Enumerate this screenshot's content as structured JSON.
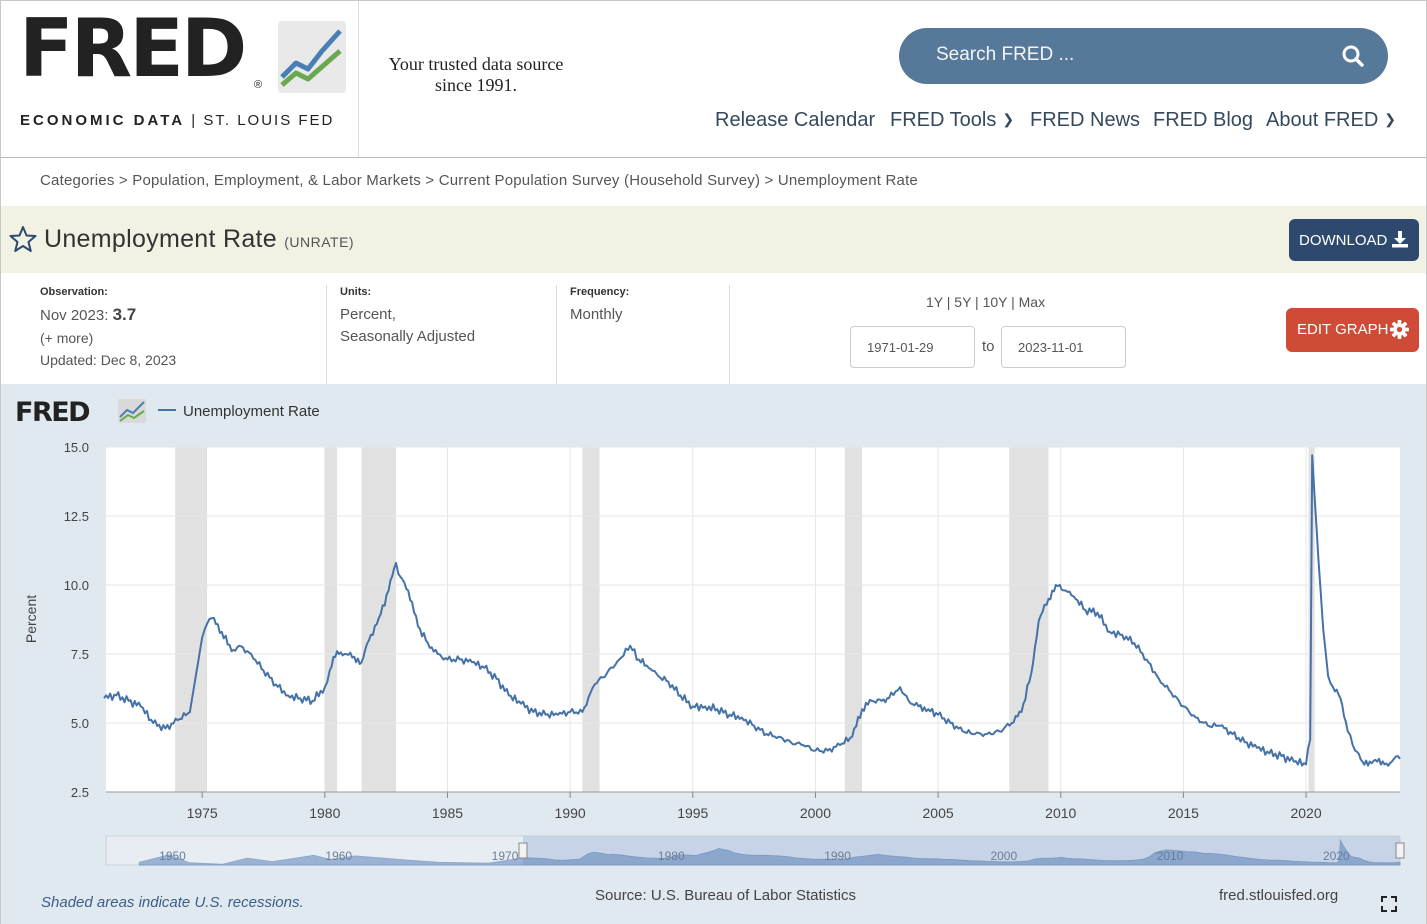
{
  "header": {
    "logo_text": "FRED",
    "logo_reg": "®",
    "logo_sub_bold": "ECONOMIC DATA",
    "logo_sub_sep": "|",
    "logo_sub_rest": "ST. LOUIS FED",
    "tagline_line1": "Your trusted data source",
    "tagline_line2": "since 1991.",
    "search_placeholder": "Search FRED ...",
    "nav": [
      "Release Calendar",
      "FRED Tools",
      "FRED News",
      "FRED Blog",
      "About FRED"
    ]
  },
  "breadcrumb": "Categories > Population, Employment, & Labor Markets > Current Population Survey (Household Survey) > Unemployment Rate",
  "series": {
    "title": "Unemployment Rate",
    "id": "(UNRATE)",
    "download_label": "DOWNLOAD",
    "edit_label": "EDIT GRAPH"
  },
  "meta": {
    "observation_label": "Observation:",
    "observation_date": "Nov 2023:",
    "observation_value": "3.7",
    "more": "(+ more)",
    "updated": "Updated: Dec 8, 2023",
    "units_label": "Units:",
    "units_line1": "Percent,",
    "units_line2": "Seasonally Adjusted",
    "frequency_label": "Frequency:",
    "frequency": "Monthly",
    "range_links": "1Y | 5Y | 10Y | Max",
    "date_from": "1971-01-29",
    "date_to_word": "to",
    "date_to": "2023-11-01"
  },
  "footer": {
    "shaded_note": "Shaded areas indicate U.S. recessions.",
    "source": "Source: U.S. Bureau of Labor Statistics",
    "url": "fred.stlouisfed.org"
  },
  "colors": {
    "line": "#4572a7",
    "recession": "#e1e1e1",
    "nav": "#34495e",
    "download": "#2d4a6e",
    "edit": "#cf4b36"
  },
  "chart_data": {
    "type": "line",
    "title": "",
    "legend": "Unemployment Rate",
    "ylabel": "Percent",
    "xlabel": "",
    "ylim": [
      2.5,
      15.0
    ],
    "xlim": [
      1971.08,
      2023.83
    ],
    "yticks": [
      "2.5",
      "5.0",
      "7.5",
      "10.0",
      "12.5",
      "15.0"
    ],
    "xticks": [
      "1975",
      "1980",
      "1985",
      "1990",
      "1995",
      "2000",
      "2005",
      "2010",
      "2015",
      "2020"
    ],
    "recessions": [
      [
        1973.9,
        1975.2
      ],
      [
        1980.0,
        1980.5
      ],
      [
        1981.5,
        1982.9
      ],
      [
        1990.5,
        1991.2
      ],
      [
        2001.2,
        2001.9
      ],
      [
        2007.9,
        2009.5
      ],
      [
        2020.1,
        2020.35
      ]
    ],
    "series": [
      {
        "name": "Unemployment Rate",
        "x": [
          1971.0,
          1971.5,
          1972.0,
          1972.5,
          1973.0,
          1973.5,
          1974.0,
          1974.5,
          1975.0,
          1975.2,
          1975.4,
          1975.8,
          1976.2,
          1976.5,
          1977.0,
          1977.5,
          1978.0,
          1978.5,
          1979.0,
          1979.5,
          1980.0,
          1980.2,
          1980.5,
          1980.8,
          1981.2,
          1981.5,
          1981.8,
          1982.2,
          1982.6,
          1982.9,
          1983.0,
          1983.4,
          1983.8,
          1984.2,
          1984.6,
          1985.0,
          1985.5,
          1986.0,
          1986.5,
          1987.0,
          1987.5,
          1988.0,
          1988.5,
          1989.0,
          1989.5,
          1990.0,
          1990.5,
          1991.0,
          1991.5,
          1992.0,
          1992.45,
          1992.8,
          1993.2,
          1993.6,
          1994.0,
          1994.5,
          1995.0,
          1995.5,
          1996.0,
          1996.5,
          1997.0,
          1997.5,
          1998.0,
          1998.5,
          1999.0,
          1999.5,
          2000.0,
          2000.5,
          2001.0,
          2001.5,
          2001.9,
          2002.3,
          2002.7,
          2003.0,
          2003.45,
          2003.8,
          2004.2,
          2004.6,
          2005.0,
          2005.5,
          2006.0,
          2006.5,
          2007.0,
          2007.5,
          2008.0,
          2008.4,
          2008.8,
          2009.1,
          2009.5,
          2009.8,
          2010.2,
          2010.6,
          2011.0,
          2011.5,
          2012.0,
          2012.5,
          2013.0,
          2013.5,
          2014.0,
          2014.5,
          2015.0,
          2015.5,
          2016.0,
          2016.5,
          2017.0,
          2017.5,
          2018.0,
          2018.5,
          2019.0,
          2019.5,
          2020.0,
          2020.17,
          2020.25,
          2020.35,
          2020.5,
          2020.7,
          2020.9,
          2021.1,
          2021.4,
          2021.7,
          2021.9,
          2022.0,
          2022.3,
          2022.6,
          2022.9,
          2023.2,
          2023.5,
          2023.75,
          2023.83
        ],
        "values": [
          5.9,
          6.0,
          5.8,
          5.6,
          5.0,
          4.8,
          5.1,
          5.4,
          8.1,
          8.6,
          8.8,
          8.3,
          7.6,
          7.8,
          7.5,
          6.9,
          6.4,
          6.0,
          5.9,
          5.8,
          6.3,
          6.9,
          7.6,
          7.5,
          7.4,
          7.2,
          8.0,
          8.8,
          9.8,
          10.8,
          10.4,
          9.8,
          8.5,
          7.9,
          7.5,
          7.3,
          7.3,
          7.2,
          7.0,
          6.6,
          6.0,
          5.7,
          5.4,
          5.3,
          5.3,
          5.4,
          5.4,
          6.4,
          6.8,
          7.3,
          7.8,
          7.3,
          7.0,
          6.7,
          6.5,
          6.0,
          5.6,
          5.6,
          5.5,
          5.3,
          5.2,
          4.9,
          4.6,
          4.5,
          4.3,
          4.2,
          4.0,
          4.0,
          4.2,
          4.5,
          5.5,
          5.8,
          5.8,
          5.9,
          6.3,
          5.8,
          5.6,
          5.5,
          5.3,
          5.0,
          4.7,
          4.6,
          4.6,
          4.7,
          5.0,
          5.4,
          6.8,
          8.7,
          9.5,
          10.0,
          9.8,
          9.5,
          9.1,
          9.0,
          8.3,
          8.2,
          7.9,
          7.3,
          6.6,
          6.1,
          5.6,
          5.2,
          4.9,
          4.9,
          4.6,
          4.3,
          4.1,
          3.9,
          3.8,
          3.6,
          3.5,
          4.4,
          14.7,
          13.2,
          11.0,
          8.4,
          6.7,
          6.3,
          5.9,
          4.7,
          4.2,
          4.0,
          3.6,
          3.6,
          3.6,
          3.5,
          3.6,
          3.8,
          3.7
        ]
      }
    ],
    "navigator": {
      "xticks": [
        "1950",
        "1960",
        "1970",
        "1980",
        "1990",
        "2000",
        "2010",
        "2020"
      ]
    }
  }
}
